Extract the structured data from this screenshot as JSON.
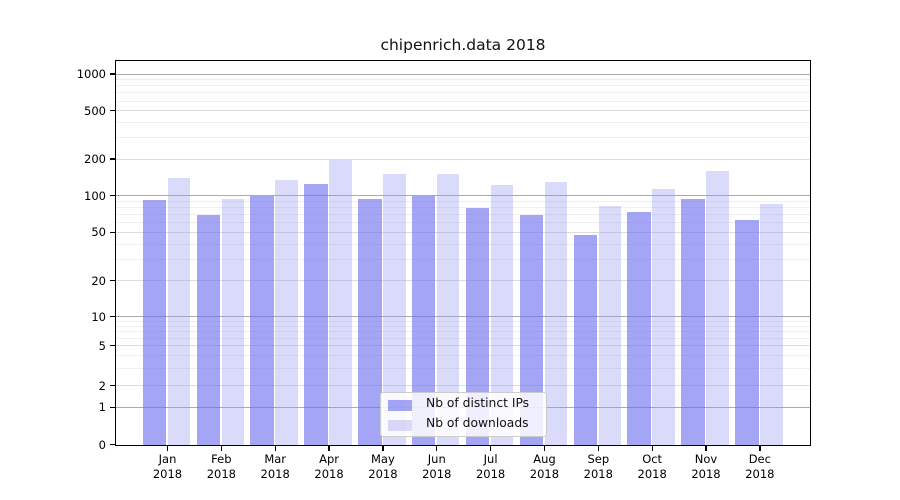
{
  "title": "chipenrich.data 2018",
  "chart_data": {
    "type": "bar",
    "scale": "log-like (0,1,2,5,10,... ticks)",
    "categories": [
      "Jan",
      "Feb",
      "Mar",
      "Apr",
      "May",
      "Jun",
      "Jul",
      "Aug",
      "Sep",
      "Oct",
      "Nov",
      "Dec"
    ],
    "year": "2018",
    "series": [
      {
        "name": "Nb of distinct IPs",
        "color": "rgba(110,110,240,0.62)",
        "values": [
          93,
          70,
          100,
          126,
          95,
          100,
          79,
          70,
          48,
          74,
          95,
          64
        ]
      },
      {
        "name": "Nb of downloads",
        "color": "rgba(150,150,240,0.35)",
        "values": [
          141,
          95,
          135,
          197,
          150,
          150,
          122,
          129,
          82,
          115,
          160,
          86
        ]
      }
    ],
    "yticks": [
      0,
      1,
      2,
      5,
      10,
      20,
      50,
      100,
      200,
      500,
      1000
    ],
    "ylim": [
      0,
      1000
    ],
    "grid": "both",
    "legend_position": "lower center-left inside plot"
  },
  "colors": {
    "bar_distinct_ips": "rgba(110,110,240,0.62)",
    "bar_downloads": "rgba(150,150,240,0.35)",
    "grid_power10": "#ababab",
    "grid_labeled": "#dcdcdc",
    "grid_minor": "#efefef",
    "spine": "#000000",
    "background": "#ffffff"
  }
}
